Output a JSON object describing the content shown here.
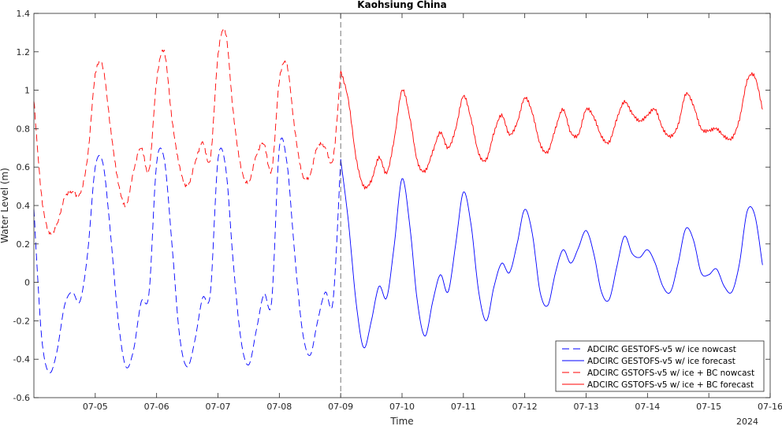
{
  "chart_data": {
    "type": "line",
    "title": "Kaohsiung China",
    "xlabel": "Time",
    "ylabel": "Water Level (m)",
    "year_label": "2024",
    "x_range": [
      "2024-07-04T00:00",
      "2024-07-16T00:00"
    ],
    "ylim": [
      -0.6,
      1.4
    ],
    "yticks": [
      -0.6,
      -0.4,
      -0.2,
      0,
      0.2,
      0.4,
      0.6,
      0.8,
      1,
      1.2,
      1.4
    ],
    "ytick_labels": [
      "-0.6",
      "-0.4",
      "-0.2",
      "0",
      "0.2",
      "0.4",
      "0.6",
      "0.8",
      "1",
      "1.2",
      "1.4"
    ],
    "xticks": [
      "2024-07-05",
      "2024-07-06",
      "2024-07-07",
      "2024-07-08",
      "2024-07-09",
      "2024-07-10",
      "2024-07-11",
      "2024-07-12",
      "2024-07-13",
      "2024-07-14",
      "2024-07-15",
      "2024-07-16"
    ],
    "xtick_labels": [
      "07-05",
      "07-06",
      "07-07",
      "07-08",
      "07-09",
      "07-10",
      "07-11",
      "07-12",
      "07-13",
      "07-14",
      "07-15",
      "07-16"
    ],
    "nowcast_boundary": "2024-07-09T00:00",
    "grid": false,
    "legend_position": "bottom-right",
    "series": [
      {
        "name": "ADCIRC GESTOFS-v5 w/ ice nowcast",
        "color": "#0000ff",
        "style": "dashed",
        "points": [
          [
            "2024-07-04T00:00",
            0.38
          ],
          [
            "2024-07-04T03:00",
            -0.28
          ],
          [
            "2024-07-04T06:00",
            -0.47
          ],
          [
            "2024-07-04T09:00",
            -0.36
          ],
          [
            "2024-07-04T12:00",
            -0.12
          ],
          [
            "2024-07-04T15:00",
            -0.05
          ],
          [
            "2024-07-04T18:00",
            -0.1
          ],
          [
            "2024-07-04T21:00",
            0.15
          ],
          [
            "2024-07-05T00:00",
            0.6
          ],
          [
            "2024-07-05T03:00",
            0.62
          ],
          [
            "2024-07-05T06:00",
            0.25
          ],
          [
            "2024-07-05T09:00",
            -0.2
          ],
          [
            "2024-07-05T12:00",
            -0.44
          ],
          [
            "2024-07-05T15:00",
            -0.35
          ],
          [
            "2024-07-05T18:00",
            -0.1
          ],
          [
            "2024-07-05T21:00",
            -0.06
          ],
          [
            "2024-07-06T00:00",
            0.62
          ],
          [
            "2024-07-06T03:00",
            0.64
          ],
          [
            "2024-07-06T06:00",
            0.2
          ],
          [
            "2024-07-06T09:00",
            -0.28
          ],
          [
            "2024-07-06T12:00",
            -0.44
          ],
          [
            "2024-07-06T15:00",
            -0.3
          ],
          [
            "2024-07-06T18:00",
            -0.08
          ],
          [
            "2024-07-06T21:00",
            -0.06
          ],
          [
            "2024-07-07T00:00",
            0.64
          ],
          [
            "2024-07-07T03:00",
            0.6
          ],
          [
            "2024-07-07T06:00",
            0.1
          ],
          [
            "2024-07-07T09:00",
            -0.3
          ],
          [
            "2024-07-07T12:00",
            -0.43
          ],
          [
            "2024-07-07T15:00",
            -0.25
          ],
          [
            "2024-07-07T18:00",
            -0.06
          ],
          [
            "2024-07-07T21:00",
            -0.1
          ],
          [
            "2024-07-08T00:00",
            0.7
          ],
          [
            "2024-07-08T03:00",
            0.62
          ],
          [
            "2024-07-08T06:00",
            0.15
          ],
          [
            "2024-07-08T09:00",
            -0.25
          ],
          [
            "2024-07-08T12:00",
            -0.38
          ],
          [
            "2024-07-08T15:00",
            -0.2
          ],
          [
            "2024-07-08T18:00",
            -0.05
          ],
          [
            "2024-07-08T21:00",
            -0.1
          ],
          [
            "2024-07-09T00:00",
            0.64
          ]
        ]
      },
      {
        "name": "ADCIRC GESTOFS-v5 w/ ice forecast",
        "color": "#0000ff",
        "style": "solid",
        "points": [
          [
            "2024-07-09T00:00",
            0.64
          ],
          [
            "2024-07-09T03:00",
            0.32
          ],
          [
            "2024-07-09T06:00",
            -0.1
          ],
          [
            "2024-07-09T09:00",
            -0.34
          ],
          [
            "2024-07-09T12:00",
            -0.2
          ],
          [
            "2024-07-09T15:00",
            -0.02
          ],
          [
            "2024-07-09T18:00",
            -0.08
          ],
          [
            "2024-07-09T21:00",
            0.2
          ],
          [
            "2024-07-10T00:00",
            0.54
          ],
          [
            "2024-07-10T03:00",
            0.3
          ],
          [
            "2024-07-10T06:00",
            -0.1
          ],
          [
            "2024-07-10T09:00",
            -0.28
          ],
          [
            "2024-07-10T12:00",
            -0.1
          ],
          [
            "2024-07-10T15:00",
            0.04
          ],
          [
            "2024-07-10T18:00",
            -0.05
          ],
          [
            "2024-07-10T21:00",
            0.2
          ],
          [
            "2024-07-11T00:00",
            0.47
          ],
          [
            "2024-07-11T03:00",
            0.3
          ],
          [
            "2024-07-11T06:00",
            -0.05
          ],
          [
            "2024-07-11T09:00",
            -0.2
          ],
          [
            "2024-07-11T12:00",
            -0.02
          ],
          [
            "2024-07-11T15:00",
            0.1
          ],
          [
            "2024-07-11T18:00",
            0.05
          ],
          [
            "2024-07-11T21:00",
            0.2
          ],
          [
            "2024-07-12T00:00",
            0.38
          ],
          [
            "2024-07-12T03:00",
            0.25
          ],
          [
            "2024-07-12T06:00",
            -0.05
          ],
          [
            "2024-07-12T09:00",
            -0.12
          ],
          [
            "2024-07-12T12:00",
            0.05
          ],
          [
            "2024-07-12T15:00",
            0.17
          ],
          [
            "2024-07-12T18:00",
            0.1
          ],
          [
            "2024-07-12T21:00",
            0.18
          ],
          [
            "2024-07-13T00:00",
            0.27
          ],
          [
            "2024-07-13T03:00",
            0.15
          ],
          [
            "2024-07-13T06:00",
            -0.05
          ],
          [
            "2024-07-13T09:00",
            -0.09
          ],
          [
            "2024-07-13T12:00",
            0.08
          ],
          [
            "2024-07-13T15:00",
            0.24
          ],
          [
            "2024-07-13T18:00",
            0.15
          ],
          [
            "2024-07-13T21:00",
            0.13
          ],
          [
            "2024-07-14T00:00",
            0.17
          ],
          [
            "2024-07-14T03:00",
            0.1
          ],
          [
            "2024-07-14T06:00",
            -0.02
          ],
          [
            "2024-07-14T09:00",
            -0.05
          ],
          [
            "2024-07-14T12:00",
            0.1
          ],
          [
            "2024-07-14T15:00",
            0.28
          ],
          [
            "2024-07-14T18:00",
            0.22
          ],
          [
            "2024-07-14T21:00",
            0.05
          ],
          [
            "2024-07-15T00:00",
            0.04
          ],
          [
            "2024-07-15T03:00",
            0.07
          ],
          [
            "2024-07-15T06:00",
            -0.02
          ],
          [
            "2024-07-15T09:00",
            -0.05
          ],
          [
            "2024-07-15T12:00",
            0.1
          ],
          [
            "2024-07-15T15:00",
            0.37
          ],
          [
            "2024-07-15T18:00",
            0.35
          ],
          [
            "2024-07-15T21:00",
            0.09
          ]
        ]
      },
      {
        "name": "ADCIRC GSTOFS-v5 w/ ice + BC nowcast",
        "color": "#ff0000",
        "style": "dashed",
        "points": [
          [
            "2024-07-04T00:00",
            0.95
          ],
          [
            "2024-07-04T03:00",
            0.45
          ],
          [
            "2024-07-04T06:00",
            0.26
          ],
          [
            "2024-07-04T09:00",
            0.3
          ],
          [
            "2024-07-04T12:00",
            0.44
          ],
          [
            "2024-07-04T15:00",
            0.47
          ],
          [
            "2024-07-04T18:00",
            0.46
          ],
          [
            "2024-07-04T21:00",
            0.65
          ],
          [
            "2024-07-05T00:00",
            1.08
          ],
          [
            "2024-07-05T03:00",
            1.12
          ],
          [
            "2024-07-05T06:00",
            0.8
          ],
          [
            "2024-07-05T09:00",
            0.52
          ],
          [
            "2024-07-05T12:00",
            0.4
          ],
          [
            "2024-07-05T15:00",
            0.58
          ],
          [
            "2024-07-05T18:00",
            0.7
          ],
          [
            "2024-07-05T21:00",
            0.58
          ],
          [
            "2024-07-06T00:00",
            1.05
          ],
          [
            "2024-07-06T03:00",
            1.2
          ],
          [
            "2024-07-06T06:00",
            0.85
          ],
          [
            "2024-07-06T09:00",
            0.6
          ],
          [
            "2024-07-06T12:00",
            0.5
          ],
          [
            "2024-07-06T15:00",
            0.62
          ],
          [
            "2024-07-06T18:00",
            0.73
          ],
          [
            "2024-07-06T21:00",
            0.64
          ],
          [
            "2024-07-07T00:00",
            1.18
          ],
          [
            "2024-07-07T03:00",
            1.3
          ],
          [
            "2024-07-07T06:00",
            0.88
          ],
          [
            "2024-07-07T09:00",
            0.6
          ],
          [
            "2024-07-07T12:00",
            0.52
          ],
          [
            "2024-07-07T15:00",
            0.66
          ],
          [
            "2024-07-07T18:00",
            0.72
          ],
          [
            "2024-07-07T21:00",
            0.58
          ],
          [
            "2024-07-08T00:00",
            1.05
          ],
          [
            "2024-07-08T03:00",
            1.13
          ],
          [
            "2024-07-08T06:00",
            0.8
          ],
          [
            "2024-07-08T09:00",
            0.56
          ],
          [
            "2024-07-08T12:00",
            0.56
          ],
          [
            "2024-07-08T15:00",
            0.71
          ],
          [
            "2024-07-08T18:00",
            0.7
          ],
          [
            "2024-07-08T21:00",
            0.64
          ],
          [
            "2024-07-09T00:00",
            1.1
          ]
        ]
      },
      {
        "name": "ADCIRC GSTOFS-v5 w/ ice + BC forecast",
        "color": "#ff0000",
        "style": "solid",
        "points": [
          [
            "2024-07-09T00:00",
            1.1
          ],
          [
            "2024-07-09T03:00",
            0.95
          ],
          [
            "2024-07-09T06:00",
            0.65
          ],
          [
            "2024-07-09T09:00",
            0.5
          ],
          [
            "2024-07-09T12:00",
            0.53
          ],
          [
            "2024-07-09T15:00",
            0.65
          ],
          [
            "2024-07-09T18:00",
            0.57
          ],
          [
            "2024-07-09T21:00",
            0.75
          ],
          [
            "2024-07-10T00:00",
            1.0
          ],
          [
            "2024-07-10T03:00",
            0.86
          ],
          [
            "2024-07-10T06:00",
            0.63
          ],
          [
            "2024-07-10T09:00",
            0.58
          ],
          [
            "2024-07-10T12:00",
            0.68
          ],
          [
            "2024-07-10T15:00",
            0.78
          ],
          [
            "2024-07-10T18:00",
            0.7
          ],
          [
            "2024-07-10T21:00",
            0.8
          ],
          [
            "2024-07-11T00:00",
            0.97
          ],
          [
            "2024-07-11T03:00",
            0.85
          ],
          [
            "2024-07-11T06:00",
            0.67
          ],
          [
            "2024-07-11T09:00",
            0.64
          ],
          [
            "2024-07-11T12:00",
            0.78
          ],
          [
            "2024-07-11T15:00",
            0.87
          ],
          [
            "2024-07-11T18:00",
            0.77
          ],
          [
            "2024-07-11T21:00",
            0.83
          ],
          [
            "2024-07-12T00:00",
            0.96
          ],
          [
            "2024-07-12T03:00",
            0.88
          ],
          [
            "2024-07-12T06:00",
            0.72
          ],
          [
            "2024-07-12T09:00",
            0.68
          ],
          [
            "2024-07-12T12:00",
            0.8
          ],
          [
            "2024-07-12T15:00",
            0.9
          ],
          [
            "2024-07-12T18:00",
            0.78
          ],
          [
            "2024-07-12T21:00",
            0.77
          ],
          [
            "2024-07-13T00:00",
            0.9
          ],
          [
            "2024-07-13T03:00",
            0.86
          ],
          [
            "2024-07-13T06:00",
            0.76
          ],
          [
            "2024-07-13T09:00",
            0.73
          ],
          [
            "2024-07-13T12:00",
            0.85
          ],
          [
            "2024-07-13T15:00",
            0.94
          ],
          [
            "2024-07-13T18:00",
            0.88
          ],
          [
            "2024-07-13T21:00",
            0.84
          ],
          [
            "2024-07-14T00:00",
            0.87
          ],
          [
            "2024-07-14T03:00",
            0.9
          ],
          [
            "2024-07-14T06:00",
            0.8
          ],
          [
            "2024-07-14T09:00",
            0.76
          ],
          [
            "2024-07-14T12:00",
            0.82
          ],
          [
            "2024-07-14T15:00",
            0.98
          ],
          [
            "2024-07-14T18:00",
            0.92
          ],
          [
            "2024-07-14T21:00",
            0.8
          ],
          [
            "2024-07-15T00:00",
            0.79
          ],
          [
            "2024-07-15T03:00",
            0.8
          ],
          [
            "2024-07-15T06:00",
            0.76
          ],
          [
            "2024-07-15T09:00",
            0.75
          ],
          [
            "2024-07-15T12:00",
            0.85
          ],
          [
            "2024-07-15T15:00",
            1.05
          ],
          [
            "2024-07-15T18:00",
            1.07
          ],
          [
            "2024-07-15T21:00",
            0.9
          ]
        ]
      }
    ]
  }
}
